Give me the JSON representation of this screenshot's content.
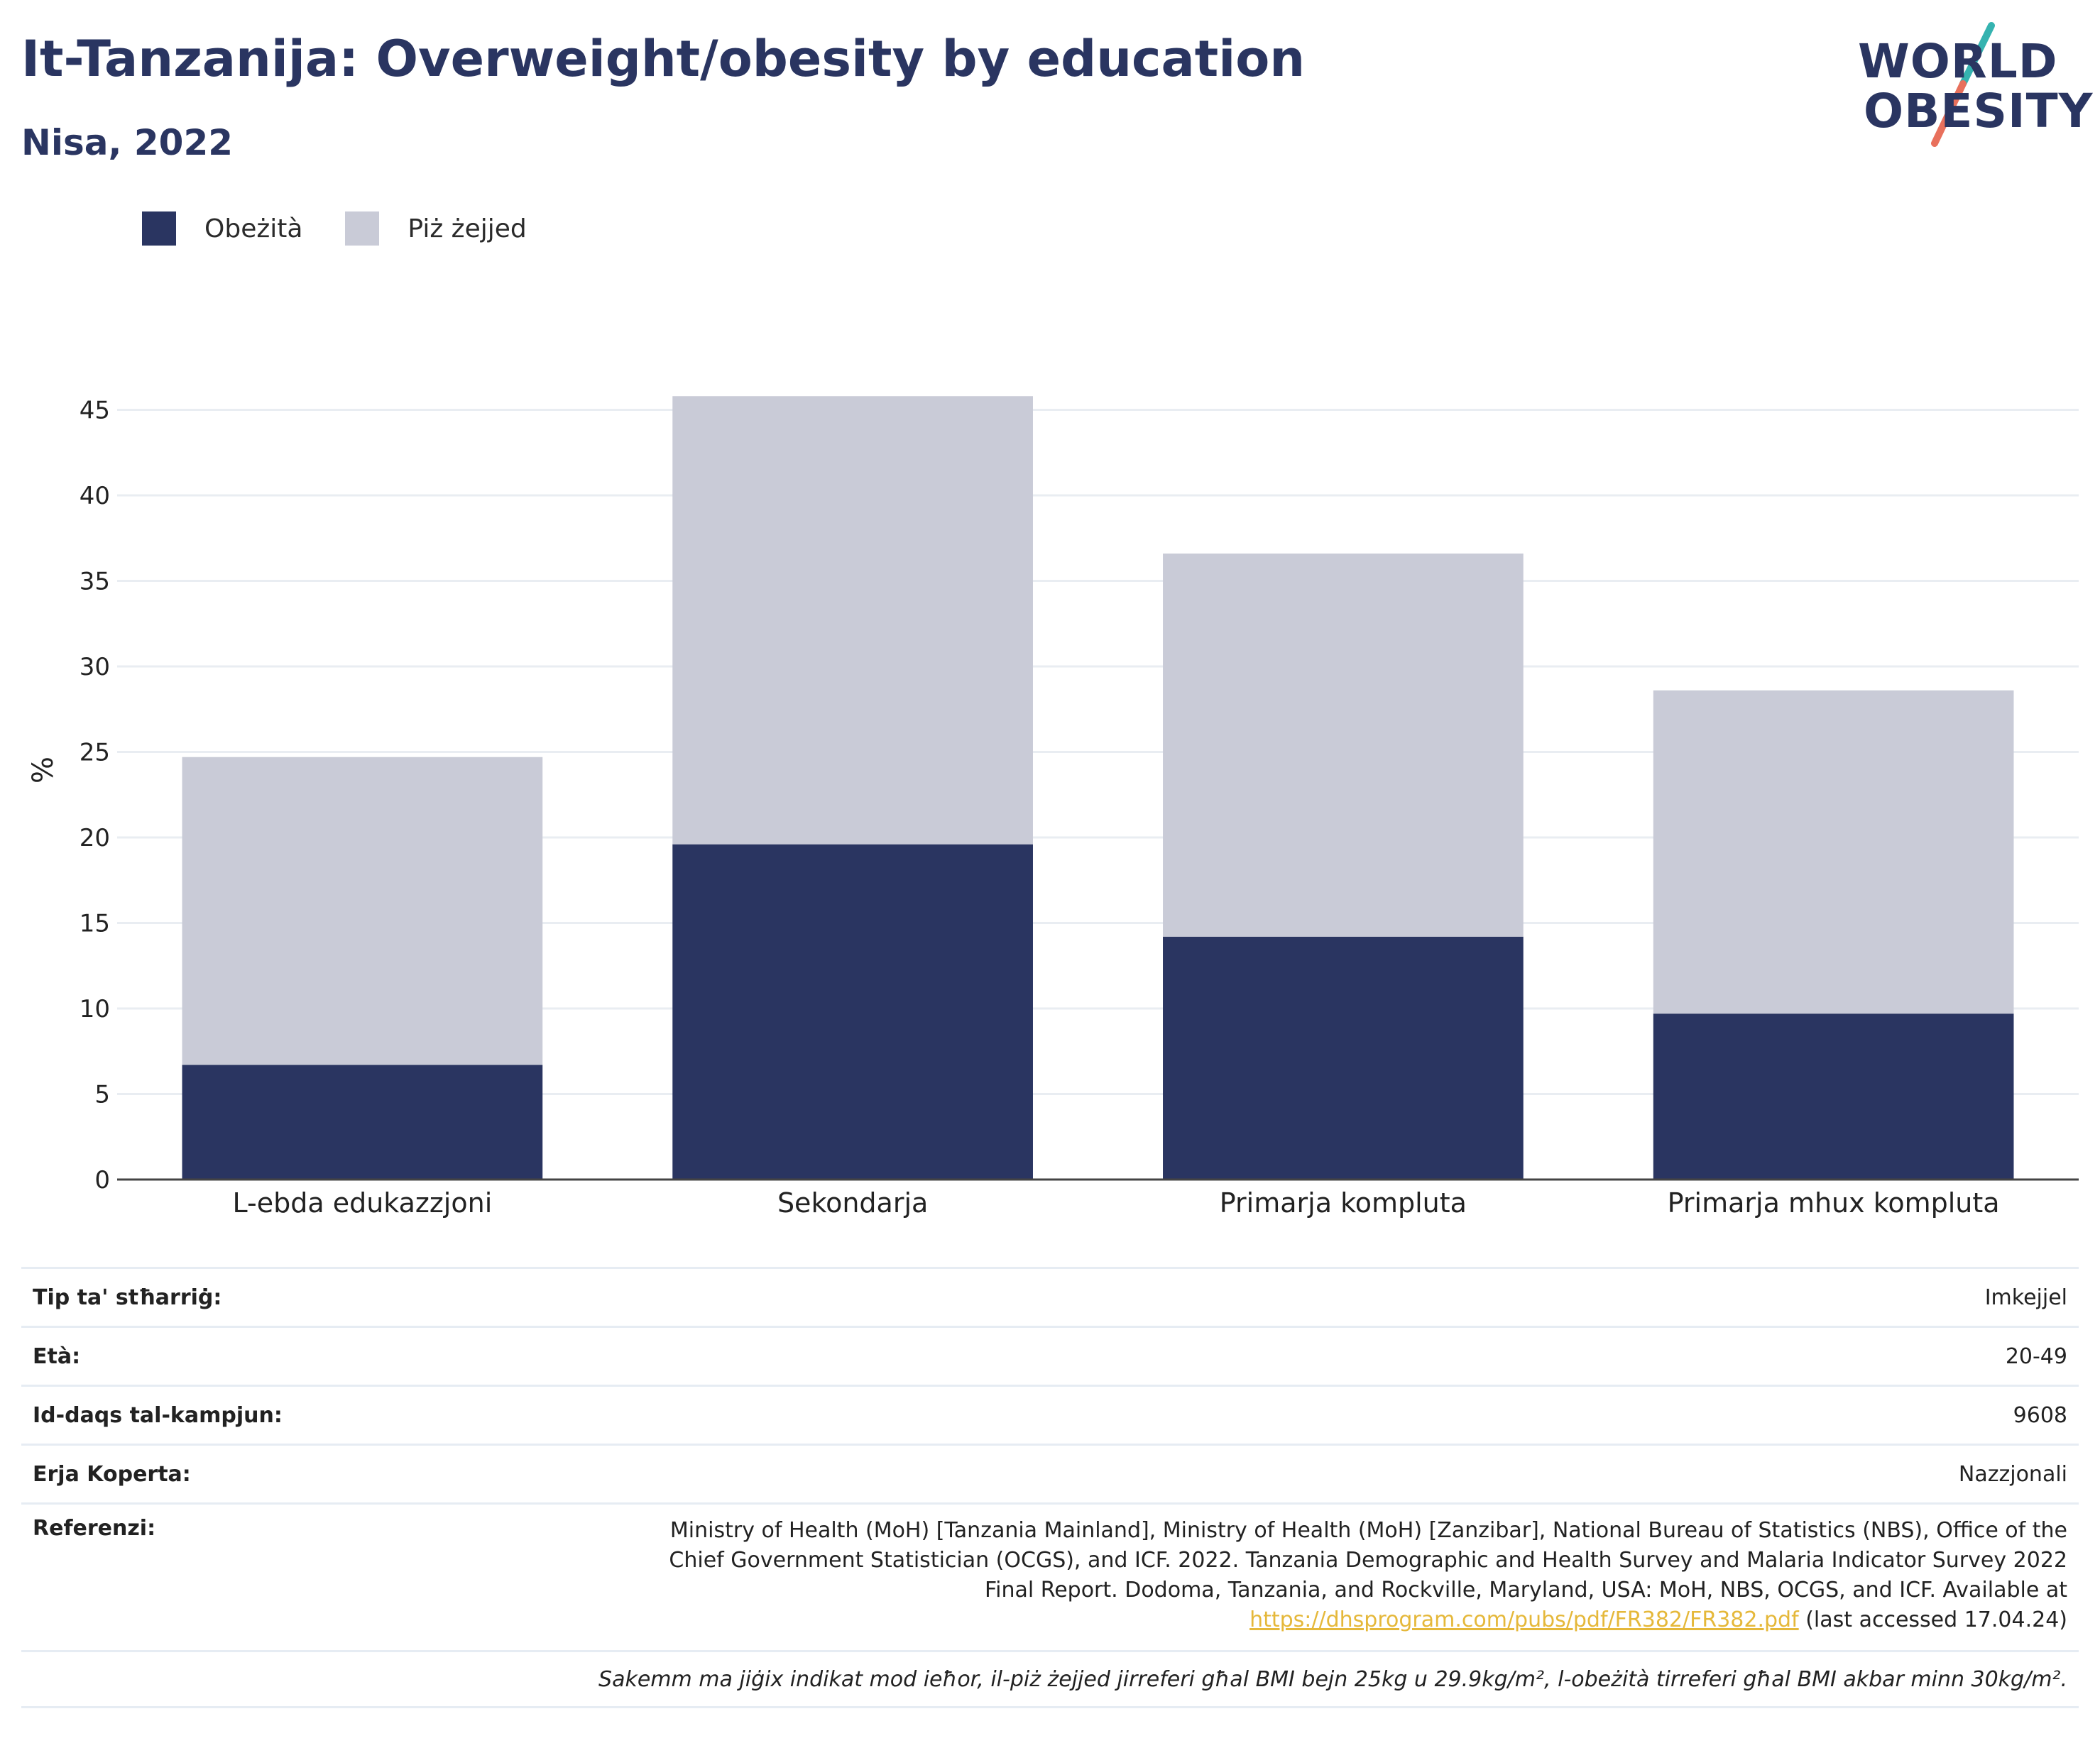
{
  "header": {
    "title": "It-Tanzanija: Overweight/obesity by education",
    "subtitle": "Nisa, 2022"
  },
  "logo": {
    "line1": "WORLD",
    "line2": "OBESITY"
  },
  "legend": [
    {
      "label": "Obeżità",
      "color": "#2a3561"
    },
    {
      "label": "Piż żejjed",
      "color": "#c9cbd7"
    }
  ],
  "chart_data": {
    "type": "bar",
    "stacked": true,
    "categories": [
      "L-ebda edukazzjoni",
      "Sekondarja",
      "Primarja kompluta",
      "Primarja mhux kompluta"
    ],
    "series": [
      {
        "name": "Obeżità",
        "color": "#2a3561",
        "values": [
          6.7,
          19.6,
          14.2,
          9.7
        ]
      },
      {
        "name": "Piż żejjed",
        "color": "#c9cbd7",
        "values": [
          18.0,
          26.2,
          22.4,
          18.9
        ]
      }
    ],
    "ylabel": "%",
    "ylim": [
      0,
      48
    ],
    "yticks": [
      0,
      5,
      10,
      15,
      20,
      25,
      30,
      35,
      40,
      45
    ],
    "grid": true,
    "legend_position": "top-left"
  },
  "info": {
    "rows": [
      {
        "key": "Tip ta' stħarriġ:",
        "value": "Imkejjel"
      },
      {
        "key": "Età:",
        "value": "20-49"
      },
      {
        "key": "Id-daqs tal-kampjun:",
        "value": "9608"
      },
      {
        "key": "Erja Koperta:",
        "value": "Nazzjonali"
      }
    ],
    "reference_key": "Referenzi:",
    "reference_text": "Ministry of Health (MoH) [Tanzania Mainland], Ministry of Health (MoH) [Zanzibar], National Bureau of Statistics (NBS), Office of the Chief Government Statistician (OCGS), and ICF. 2022. Tanzania Demographic and Health Survey and Malaria Indicator Survey 2022 Final Report. Dodoma, Tanzania, and Rockville, Maryland, USA: MoH, NBS, OCGS, and ICF. Available at",
    "reference_link": "https://dhsprogram.com/pubs/pdf/FR382/FR382.pdf",
    "reference_suffix": "(last accessed 17.04.24)",
    "note": "Sakemm ma jiġix indikat mod ieħor, il-piż żejjed jirreferi għal BMI bejn 25kg u 29.9kg/m², l-obeżità tirreferi għal BMI akbar minn 30kg/m²."
  }
}
